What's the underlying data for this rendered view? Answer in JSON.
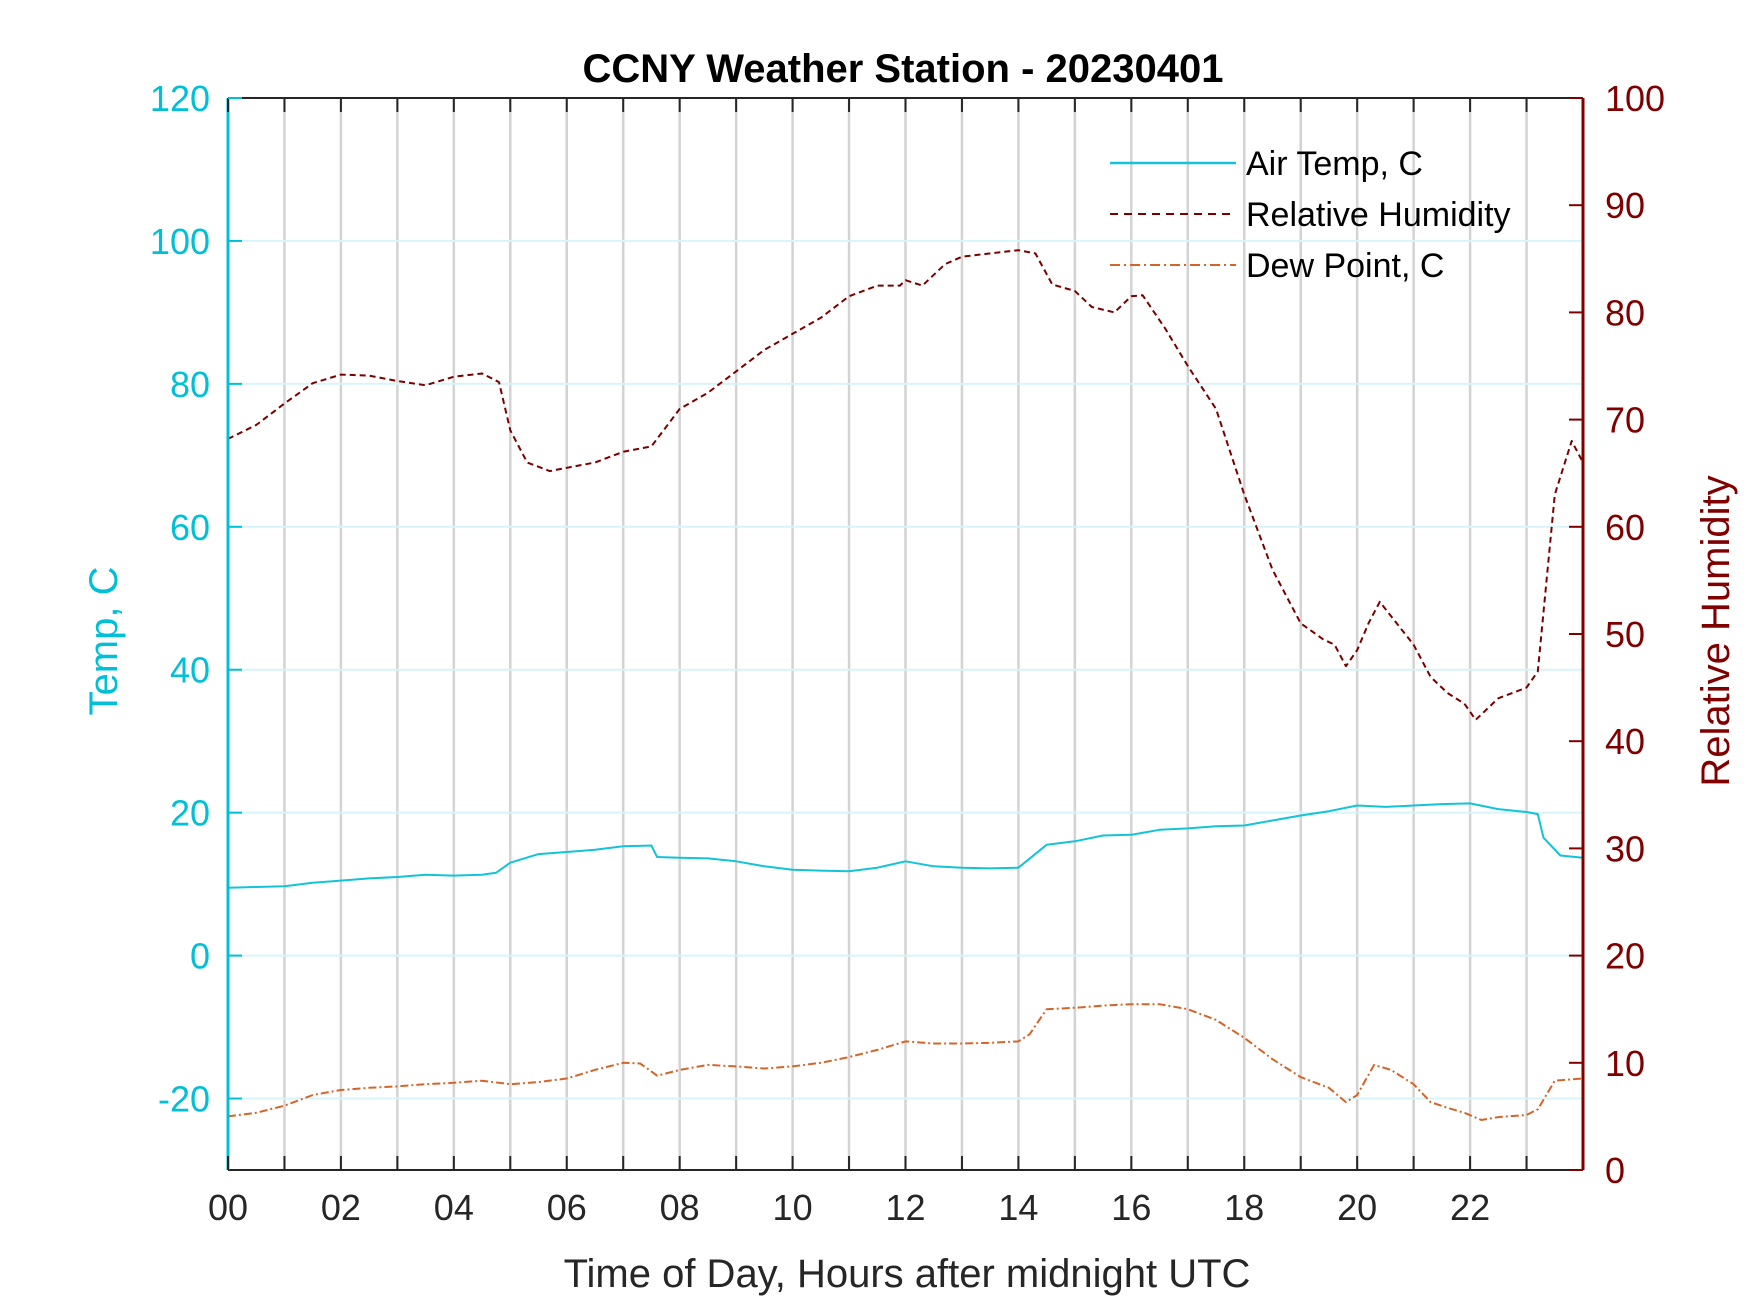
{
  "chart_data": {
    "type": "line",
    "title": "CCNY Weather Station - 20230401",
    "xlabel": "Time of Day, Hours after midnight UTC",
    "ylabel_left": "Temp, C",
    "ylabel_right": "Relative Humidity",
    "xlim": [
      0,
      24
    ],
    "ylim_left": [
      -30,
      120
    ],
    "ylim_right": [
      0,
      100
    ],
    "x_tick_labels": [
      "00",
      "02",
      "04",
      "06",
      "08",
      "10",
      "12",
      "14",
      "16",
      "18",
      "20",
      "22"
    ],
    "x_tick_values": [
      0,
      2,
      4,
      6,
      8,
      10,
      12,
      14,
      16,
      18,
      20,
      22
    ],
    "y_left_ticks": [
      -20,
      0,
      20,
      40,
      60,
      80,
      100,
      120
    ],
    "y_right_ticks": [
      0,
      10,
      20,
      30,
      40,
      50,
      60,
      70,
      80,
      90,
      100
    ],
    "grid": true,
    "legend_position": "top-right",
    "colors": {
      "temp": "#12c3d9",
      "rh": "#7a0000",
      "dew": "#d4652a",
      "left_axis": "#00c0d8",
      "right_axis": "#800000"
    },
    "series": [
      {
        "name": "Air Temp, C",
        "axis": "left",
        "style": "solid",
        "x": [
          0,
          0.5,
          1,
          1.5,
          2,
          2.5,
          3,
          3.5,
          4,
          4.5,
          4.75,
          5,
          5.5,
          6,
          6.5,
          7,
          7.5,
          7.6,
          8,
          8.5,
          9,
          9.5,
          10,
          10.5,
          11,
          11.5,
          12,
          12.5,
          13,
          13.5,
          14,
          14.5,
          15,
          15.5,
          16,
          16.5,
          17,
          17.5,
          18,
          18.5,
          19,
          19.5,
          20,
          20.5,
          21,
          21.5,
          22,
          22.5,
          23,
          23.2,
          23.3,
          23.6,
          24
        ],
        "y": [
          9.5,
          9.6,
          9.7,
          10.2,
          10.5,
          10.8,
          11,
          11.3,
          11.2,
          11.3,
          11.6,
          13,
          14.2,
          14.5,
          14.8,
          15.3,
          15.4,
          13.8,
          13.7,
          13.6,
          13.2,
          12.5,
          12.0,
          11.9,
          11.8,
          12.3,
          13.2,
          12.5,
          12.3,
          12.2,
          12.3,
          15.5,
          16.0,
          16.8,
          16.9,
          17.6,
          17.8,
          18.1,
          18.2,
          18.9,
          19.6,
          20.2,
          21.0,
          20.8,
          21.0,
          21.2,
          21.3,
          20.5,
          20.1,
          19.8,
          16.5,
          14.0,
          13.7
        ]
      },
      {
        "name": "Relative Humidity",
        "axis": "right",
        "style": "dashed",
        "x": [
          0,
          0.5,
          1,
          1.5,
          2,
          2.5,
          3,
          3.5,
          4,
          4.5,
          4.8,
          5,
          5.3,
          5.7,
          6,
          6.5,
          7,
          7.5,
          8,
          8.5,
          9,
          9.5,
          10,
          10.5,
          11,
          11.5,
          11.9,
          12,
          12.3,
          12.7,
          13,
          13.5,
          14,
          14.3,
          14.6,
          15,
          15.3,
          15.7,
          16,
          16.2,
          16.6,
          17,
          17.5,
          18,
          18.5,
          19,
          19.4,
          19.6,
          19.8,
          20,
          20.2,
          20.4,
          20.7,
          21,
          21.3,
          21.6,
          21.9,
          22.1,
          22.5,
          23,
          23.2,
          23.5,
          23.8,
          24
        ],
        "y": [
          68.2,
          69.5,
          71.5,
          73.4,
          74.2,
          74.1,
          73.6,
          73.2,
          74.0,
          74.3,
          73.5,
          69,
          66,
          65.2,
          65.5,
          66,
          67,
          67.5,
          71,
          72.5,
          74.5,
          76.5,
          78,
          79.5,
          81.5,
          82.5,
          82.5,
          83,
          82.5,
          84.5,
          85.2,
          85.5,
          85.8,
          85.5,
          82.6,
          82.0,
          80.5,
          80.0,
          81.5,
          81.6,
          78.5,
          75.0,
          71.0,
          63.0,
          56.0,
          51.0,
          49.5,
          49.0,
          47.0,
          48.5,
          51.0,
          53.0,
          51.0,
          49.0,
          46.0,
          44.5,
          43.5,
          42.0,
          44.0,
          45.0,
          46.5,
          63.0,
          68.0,
          66.0
        ]
      },
      {
        "name": "Dew Point, C",
        "axis": "left",
        "style": "dash-dot",
        "x": [
          0,
          0.5,
          1,
          1.5,
          2,
          2.5,
          3,
          3.5,
          4,
          4.5,
          5,
          5.5,
          6,
          6.5,
          7,
          7.3,
          7.5,
          7.6,
          8,
          8.5,
          9,
          9.5,
          10,
          10.5,
          11,
          11.5,
          12,
          12.5,
          13,
          13.5,
          14,
          14.2,
          14.5,
          15,
          15.5,
          16,
          16.5,
          17,
          17.5,
          18,
          18.5,
          19,
          19.5,
          19.8,
          20,
          20.3,
          20.6,
          21,
          21.3,
          21.6,
          21.9,
          22.2,
          22.5,
          23,
          23.2,
          23.5,
          24
        ],
        "y": [
          -22.5,
          -22,
          -21,
          -19.5,
          -18.8,
          -18.5,
          -18.3,
          -18.0,
          -17.8,
          -17.5,
          -18.0,
          -17.7,
          -17.2,
          -16.0,
          -15.0,
          -15.1,
          -16.2,
          -16.8,
          -16.0,
          -15.3,
          -15.5,
          -15.8,
          -15.5,
          -15.0,
          -14.2,
          -13.2,
          -12.0,
          -12.3,
          -12.3,
          -12.2,
          -12.0,
          -11.0,
          -7.5,
          -7.3,
          -7.0,
          -6.8,
          -6.8,
          -7.5,
          -9.0,
          -11.5,
          -14.5,
          -17.0,
          -18.5,
          -20.5,
          -19.5,
          -15.3,
          -16.0,
          -18.0,
          -20.5,
          -21.3,
          -22.0,
          -23.0,
          -22.6,
          -22.3,
          -21.5,
          -17.5,
          -17.2
        ]
      }
    ]
  }
}
